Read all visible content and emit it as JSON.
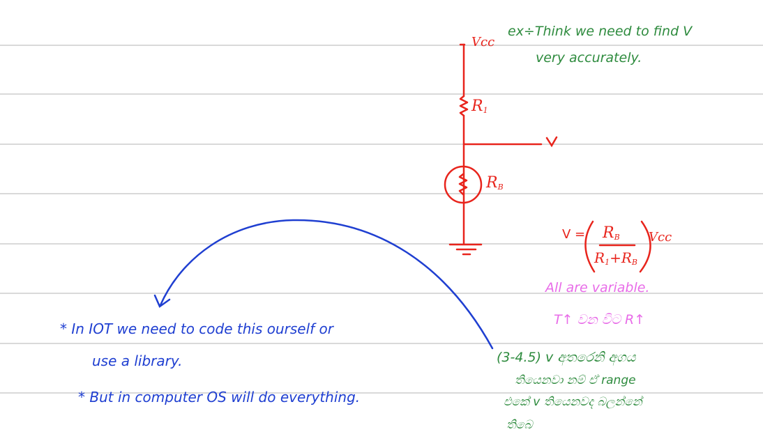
{
  "circuit": {
    "vcc_label": "Vcc",
    "r1_label": "R",
    "r1_sub": "1",
    "v_label": "V",
    "rb_label": "R",
    "rb_sub": "B"
  },
  "notes": {
    "example_line1": "ex÷Think we need to find V",
    "example_line2": "very accurately.",
    "formula_lhs": "V =",
    "formula_num": "R",
    "formula_num_sub": "B",
    "formula_den": "R",
    "formula_den_sub1": "1",
    "formula_den_plus": "+R",
    "formula_den_sub2": "B",
    "formula_rhs": "Vcc",
    "variable_note": "All are variable.",
    "temp_note": "T↑ වන විට R↑",
    "iot_line1": "* In  IOT we need to code this ourself or",
    "iot_line2": "use a library.",
    "os_line": "* But in computer OS will do everything.",
    "range_line1": "(3-4.5) v  අතරෙනි අගය",
    "range_line2": "තියෙනවා නම් ඒ range",
    "range_line3": "එකේ v තියෙනවද බලන්නේ",
    "range_line4": "තිබෙ"
  },
  "colors": {
    "circuit": "#e8241c",
    "green_ink": "#2e8b3e",
    "blue_ink": "#1f3fd1",
    "pink_ink": "#e86ce8",
    "rule": "#d9d9d9"
  }
}
